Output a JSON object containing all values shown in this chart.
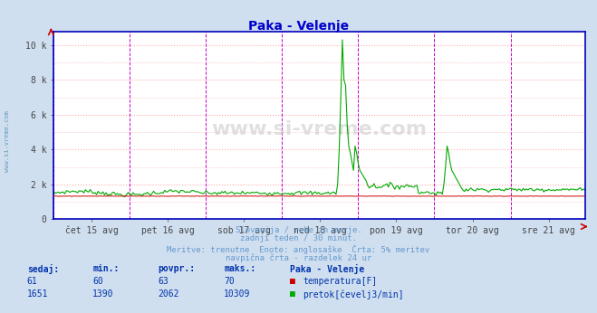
{
  "title": "Paka - Velenje",
  "title_color": "#0000cc",
  "bg_color": "#d0dff0",
  "plot_bg_color": "#ffffff",
  "grid_color": "#ffaaaa",
  "vline_color": "#cc00cc",
  "axis_color": "#0000bb",
  "x_tick_labels": [
    "čet 15 avg",
    "pet 16 avg",
    "sob 17 avg",
    "ned 18 avg",
    "pon 19 avg",
    "tor 20 avg",
    "sre 21 avg"
  ],
  "y_tick_labels": [
    "0",
    "2 k",
    "4 k",
    "6 k",
    "8 k",
    "10 k"
  ],
  "y_tick_values": [
    0,
    2000,
    4000,
    6000,
    8000,
    10000
  ],
  "ylim_max": 10800,
  "num_points": 336,
  "temp_color": "#cc0000",
  "flow_color": "#00aa00",
  "sidebar_text": "www.si-vreme.com",
  "sidebar_color": "#6699bb",
  "watermark_text": "www.si-vreme.com",
  "watermark_color": "#bbbbbb",
  "bottom_text_color": "#6699cc",
  "bottom_text1": "Slovenija / reke in morje.",
  "bottom_text2": "zadnji teden / 30 minut.",
  "bottom_text3": "Meritve: trenutne  Enote: anglosaške  Črta: 5% meritev",
  "bottom_text4": "navpična črta - razdelek 24 ur",
  "table_color": "#0033aa",
  "table_headers": [
    "sedaj:",
    "min.:",
    "povpr.:",
    "maks.:",
    "Paka - Velenje"
  ],
  "table_row1": [
    "61",
    "60",
    "63",
    "70"
  ],
  "table_row2": [
    "1651",
    "1390",
    "2062",
    "10309"
  ],
  "label_temp": "temperatura[F]",
  "label_flow": "pretok[čevelj3/min]"
}
